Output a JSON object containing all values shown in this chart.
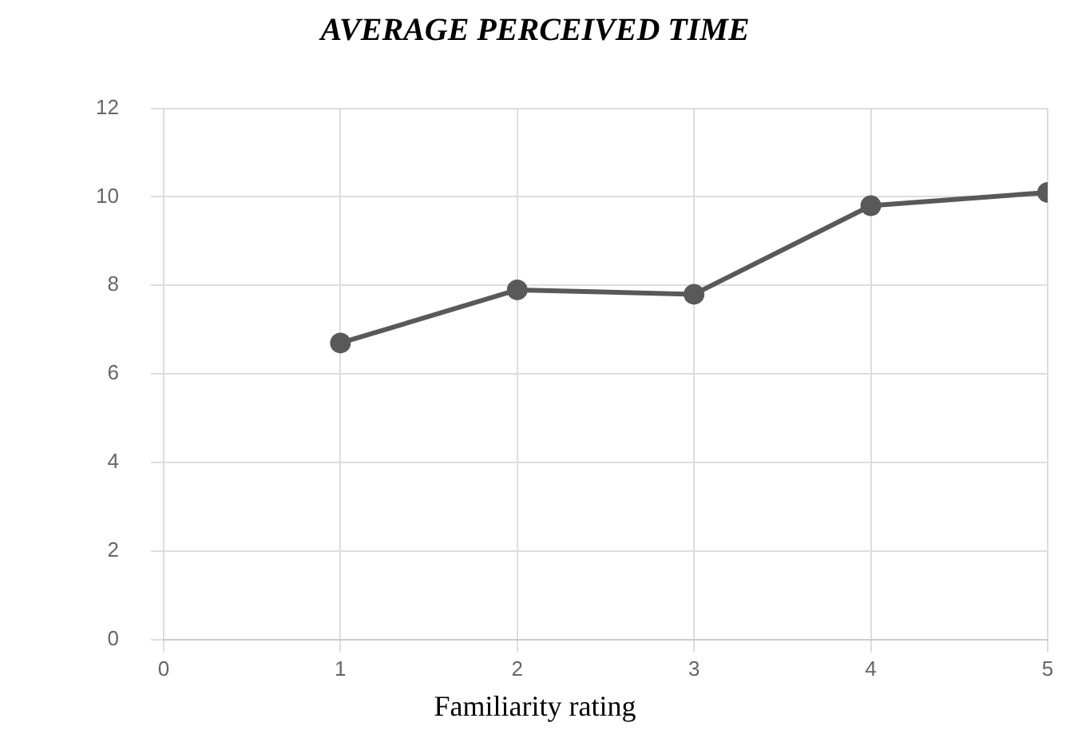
{
  "chart_data": {
    "type": "line",
    "title": "AVERAGE PERCEIVED TIME",
    "xlabel": "Familiarity rating",
    "x": [
      1,
      2,
      3,
      4,
      5
    ],
    "series": [
      {
        "color": "#595959",
        "values": [
          6.7,
          7.9,
          7.8,
          9.8,
          10.1
        ]
      }
    ],
    "xlim": [
      0,
      5
    ],
    "xticks": [
      0,
      1,
      2,
      3,
      4,
      5
    ],
    "ylim": [
      0,
      12
    ],
    "yticks": [
      0,
      2,
      4,
      6,
      8,
      10,
      12
    ],
    "grid": true,
    "legend": false,
    "marker": "circle",
    "line_style": "solid"
  }
}
